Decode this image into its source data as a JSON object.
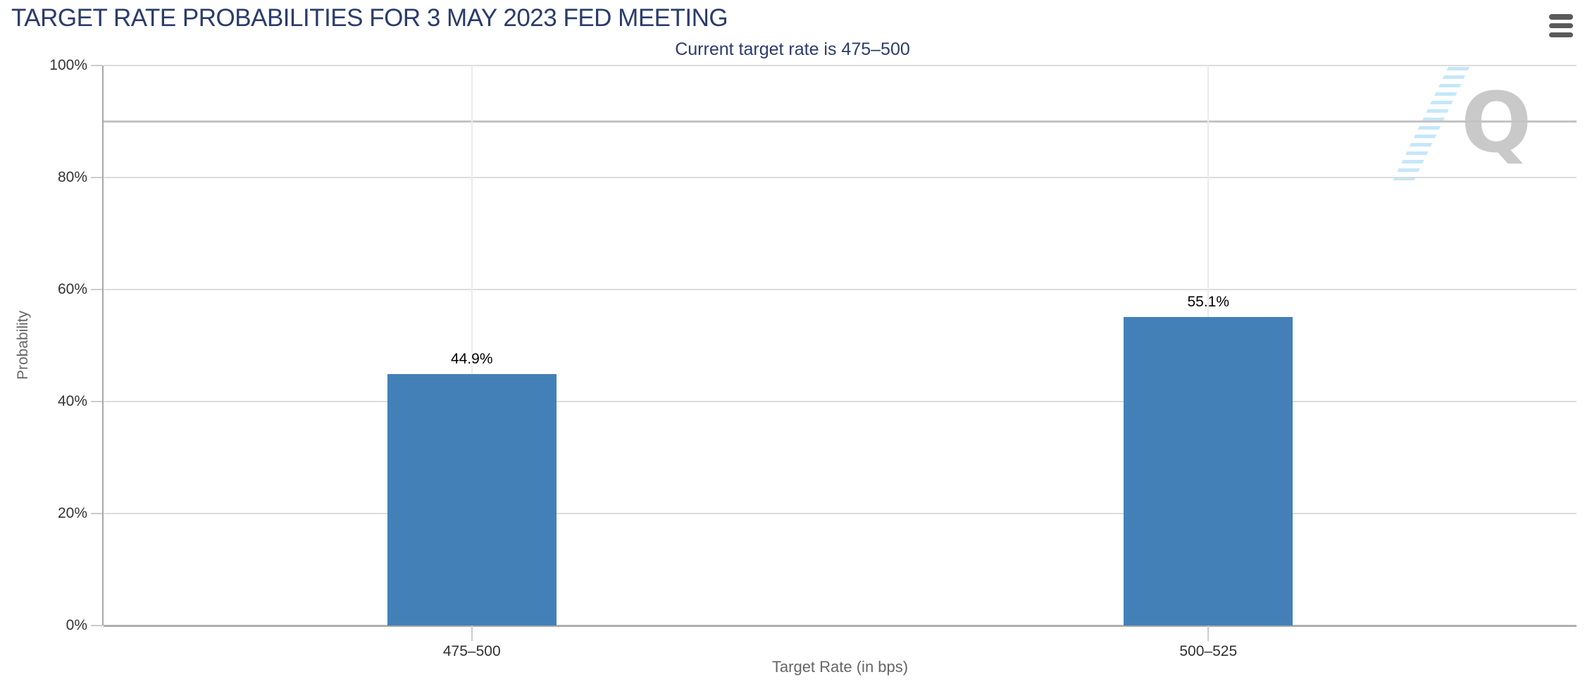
{
  "header": {
    "title": "TARGET RATE PROBABILITIES FOR 3 MAY 2023 FED MEETING"
  },
  "chart_data": {
    "type": "bar",
    "title": "TARGET RATE PROBABILITIES FOR 3 MAY 2023 FED MEETING",
    "subtitle": "Current target rate is 475–500",
    "categories": [
      "475–500",
      "500–525"
    ],
    "values": [
      44.9,
      55.1
    ],
    "value_labels": [
      "44.9%",
      "55.1%"
    ],
    "xlabel": "Target Rate (in bps)",
    "ylabel": "Probability",
    "ylim": [
      0,
      100
    ],
    "ytick_values": [
      0,
      20,
      40,
      60,
      80,
      100
    ],
    "ytick_labels": [
      "0%",
      "20%",
      "40%",
      "60%",
      "80%",
      "100%"
    ],
    "extra_gridline_value": 90,
    "grid": true,
    "legend": "none",
    "bar_color": "#4480b8",
    "title_color": "#2b3c6b"
  },
  "watermark": {
    "letter": "Q"
  },
  "icons": {
    "menu": "hamburger-icon"
  }
}
